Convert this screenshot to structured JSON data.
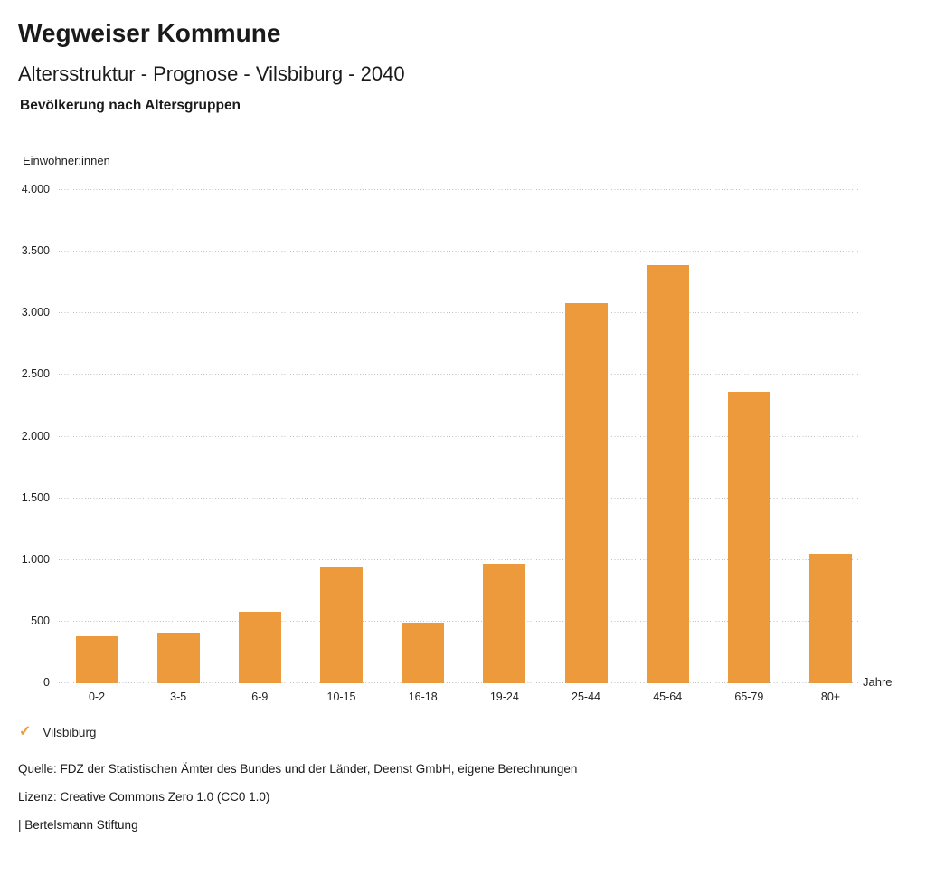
{
  "header": {
    "title": "Wegweiser Kommune",
    "subtitle": "Altersstruktur - Prognose - Vilsbiburg - 2040",
    "caption": "Bevölkerung nach Altersgruppen"
  },
  "chart_data": {
    "type": "bar",
    "title": "Bevölkerung nach Altersgruppen",
    "categories": [
      "0-2",
      "3-5",
      "6-9",
      "10-15",
      "16-18",
      "19-24",
      "25-44",
      "45-64",
      "65-79",
      "80+"
    ],
    "values": [
      380,
      415,
      580,
      945,
      490,
      970,
      3080,
      3390,
      2365,
      1050
    ],
    "series_name": "Vilsbiburg",
    "xlabel": "Jahre",
    "ylabel": "Einwohner:innen",
    "ylim": [
      0,
      4000
    ],
    "yticks": [
      0,
      500,
      1000,
      1500,
      2000,
      2500,
      3000,
      3500,
      4000
    ],
    "ytick_labels": [
      "0",
      "500",
      "1.000",
      "1.500",
      "2.000",
      "2.500",
      "3.000",
      "3.500",
      "4.000"
    ],
    "grid": "horizontal-dotted",
    "bar_color": "#EC9A3C",
    "legend_position": "bottom-left"
  },
  "legend": {
    "check_icon": "✓",
    "label": "Vilsbiburg"
  },
  "footer": {
    "source": "Quelle: FDZ der Statistischen Ämter des Bundes und der Länder, Deenst GmbH, eigene Berechnungen",
    "license": "Lizenz: Creative Commons Zero 1.0 (CC0 1.0)",
    "attribution": "| Bertelsmann Stiftung"
  }
}
